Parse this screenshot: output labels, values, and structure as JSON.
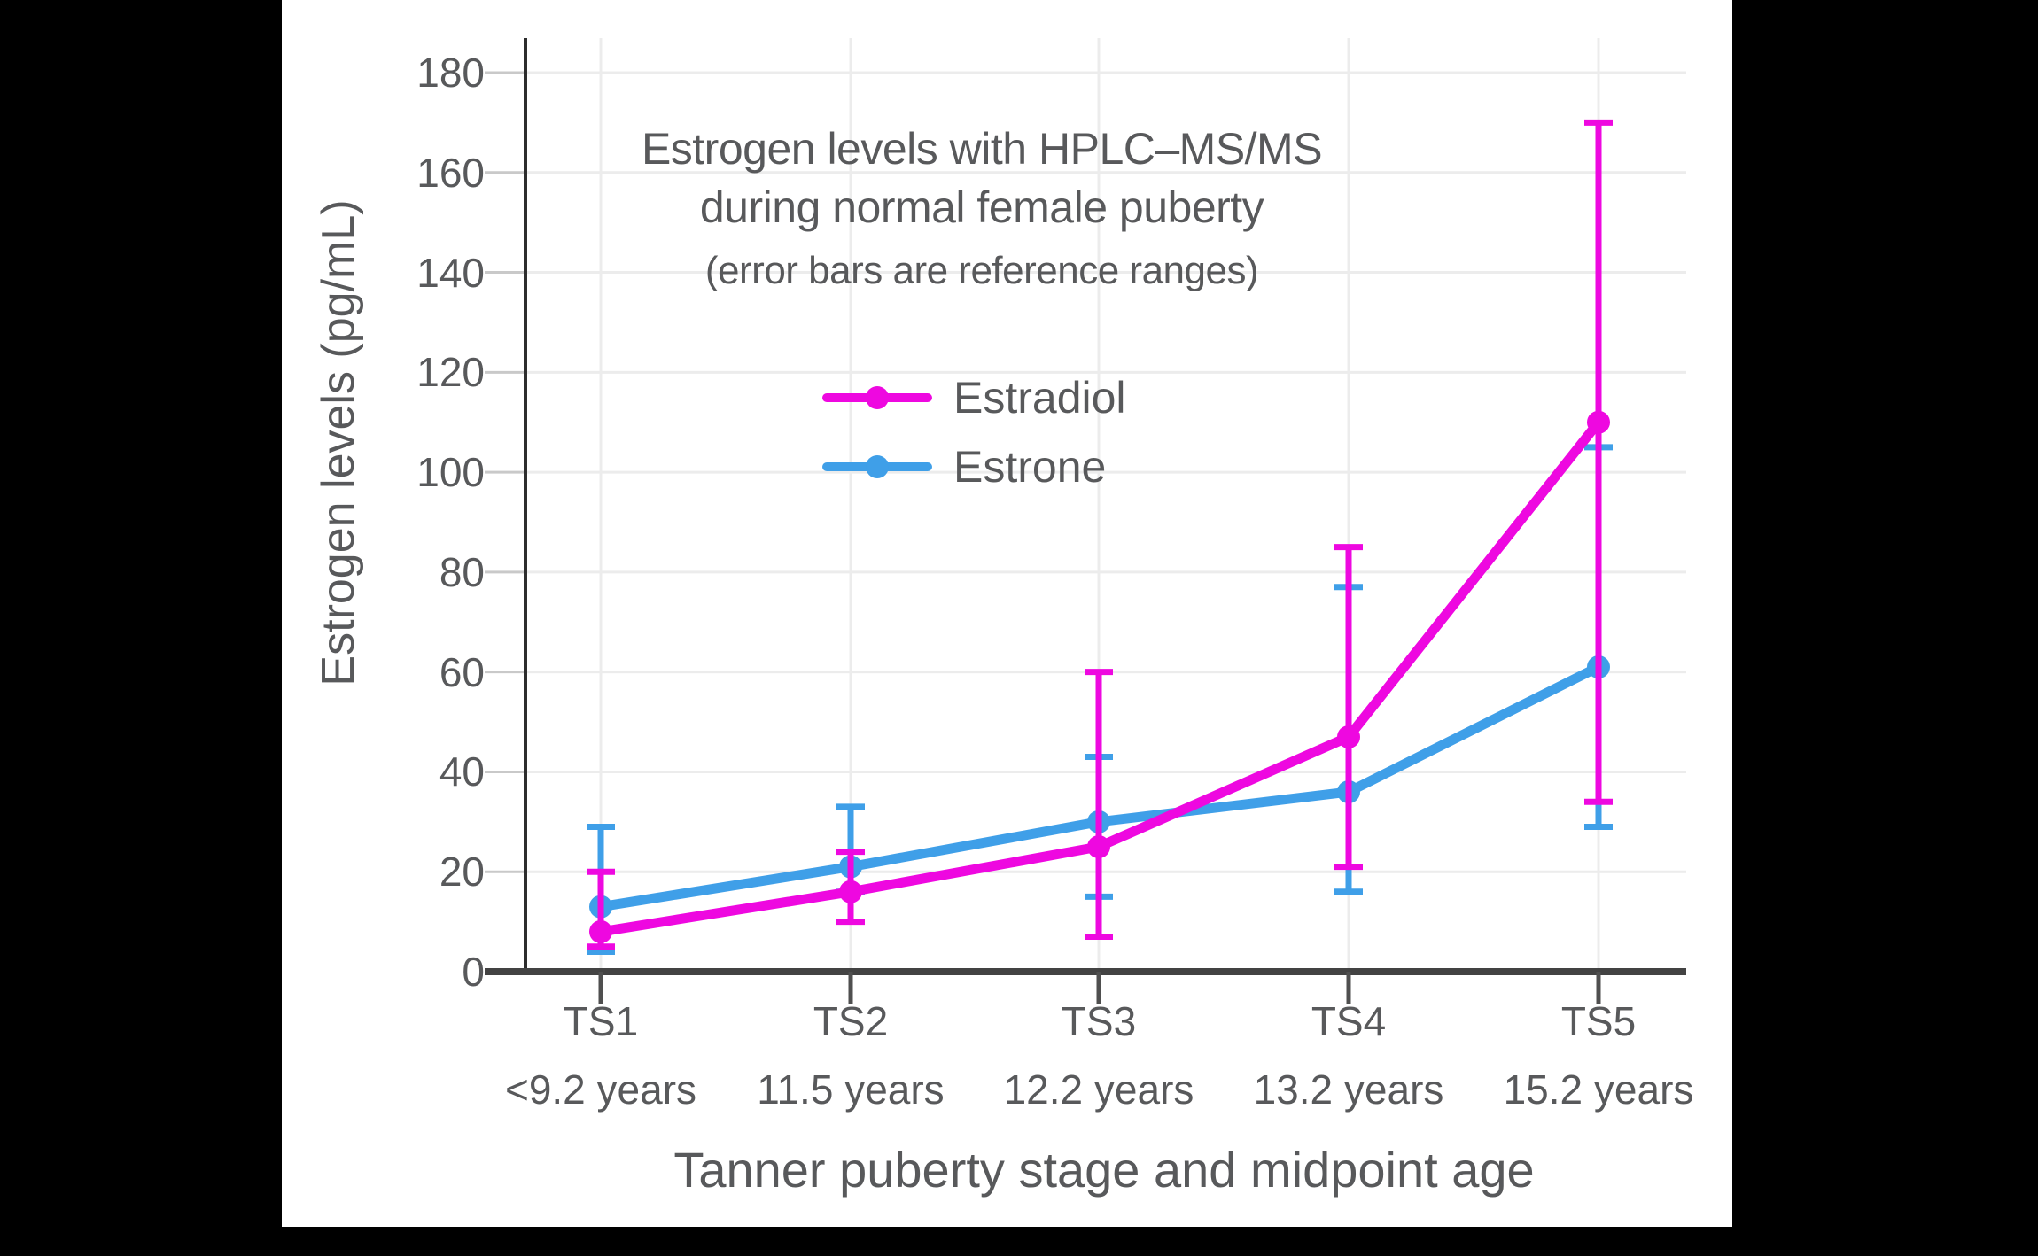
{
  "colors": {
    "background": "#000000",
    "plot_background": "#ffffff",
    "text": "#58595b",
    "grid": "#ececec",
    "y_axis": "#2d2d2d",
    "x_axis": "#434343",
    "x_tick": "#4f4f4f",
    "y_tick": "#c9c9c9",
    "estradiol": "#ee08e0",
    "estrone": "#3f9fe8"
  },
  "chart_data": {
    "type": "line",
    "title_line1": "Estrogen levels with HPLC–MS/MS",
    "title_line2": "during normal female puberty",
    "subtitle": "(error bars are reference ranges)",
    "xlabel": "Tanner puberty stage and midpoint age",
    "ylabel": "Estrogen levels (pg/mL)",
    "categories": [
      "TS1",
      "TS2",
      "TS3",
      "TS4",
      "TS5"
    ],
    "category_sublabels": [
      "<9.2 years",
      "11.5 years",
      "12.2 years",
      "13.2 years",
      "15.2 years"
    ],
    "y_ticks": [
      0,
      20,
      40,
      60,
      80,
      100,
      120,
      140,
      160,
      180
    ],
    "ylim": [
      0,
      187
    ],
    "grid": true,
    "legend_position": "inside-upper-center",
    "error_bar_note": "error bars are reference ranges",
    "series": [
      {
        "name": "Estradiol",
        "color": "#ee08e0",
        "values": [
          8,
          16,
          25,
          47,
          110
        ],
        "error_low": [
          5,
          10,
          7,
          21,
          34
        ],
        "error_high": [
          20,
          24,
          60,
          85,
          170
        ]
      },
      {
        "name": "Estrone",
        "color": "#3f9fe8",
        "values": [
          13,
          21,
          30,
          36,
          61
        ],
        "error_low": [
          4,
          16,
          15,
          16,
          29
        ],
        "error_high": [
          29,
          33,
          43,
          77,
          105
        ]
      }
    ]
  }
}
